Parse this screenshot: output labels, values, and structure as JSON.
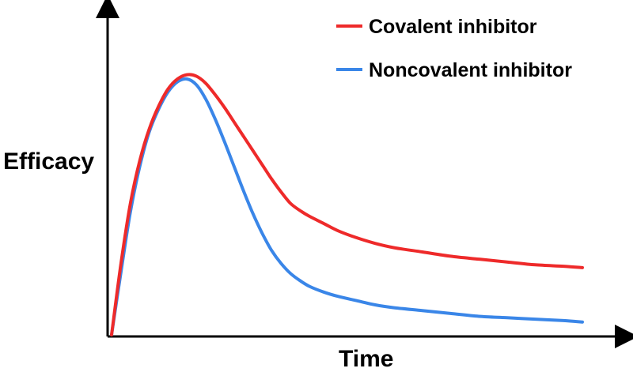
{
  "chart_data": {
    "type": "line",
    "xlabel": "Time",
    "ylabel": "Efficacy",
    "xlim": [
      0,
      100
    ],
    "ylim": [
      0,
      100
    ],
    "x_ticks": false,
    "y_ticks": false,
    "grid": false,
    "legend_position": "top-right",
    "series": [
      {
        "name": "Covalent inhibitor",
        "color": "#ee2a2a",
        "x": [
          0,
          2,
          4,
          6,
          8,
          10,
          12,
          14,
          16,
          18,
          20,
          22,
          24,
          26,
          28,
          30,
          32,
          34,
          36,
          38,
          40,
          42,
          45,
          48,
          52,
          56,
          60,
          66,
          72,
          78,
          84,
          90,
          96,
          100
        ],
        "y": [
          0,
          25,
          46,
          61,
          72,
          80,
          86,
          89.5,
          91,
          90.5,
          88,
          84,
          79.5,
          74.5,
          69.5,
          64.5,
          59.5,
          54.5,
          50,
          46,
          43.5,
          41.5,
          39,
          36.5,
          34,
          32,
          30.5,
          29,
          27.5,
          26.5,
          25.5,
          24.5,
          24,
          23.5
        ]
      },
      {
        "name": "Noncovalent inhibitor",
        "color": "#3a86e8",
        "x": [
          0,
          2,
          4,
          6,
          8,
          10,
          12,
          14,
          16,
          18,
          20,
          22,
          24,
          26,
          28,
          30,
          32,
          34,
          36,
          38,
          40,
          42,
          45,
          48,
          52,
          56,
          60,
          66,
          72,
          78,
          84,
          90,
          96,
          100
        ],
        "y": [
          0,
          22,
          43,
          59,
          71,
          79,
          85,
          88.5,
          89.5,
          87.5,
          82.5,
          75.5,
          67.5,
          59,
          50.5,
          42.5,
          35.5,
          29.5,
          25,
          21.5,
          19,
          17,
          15,
          13.5,
          12,
          10.5,
          9.5,
          8.5,
          7.5,
          6.5,
          6,
          5.5,
          5,
          4.5
        ]
      }
    ]
  }
}
